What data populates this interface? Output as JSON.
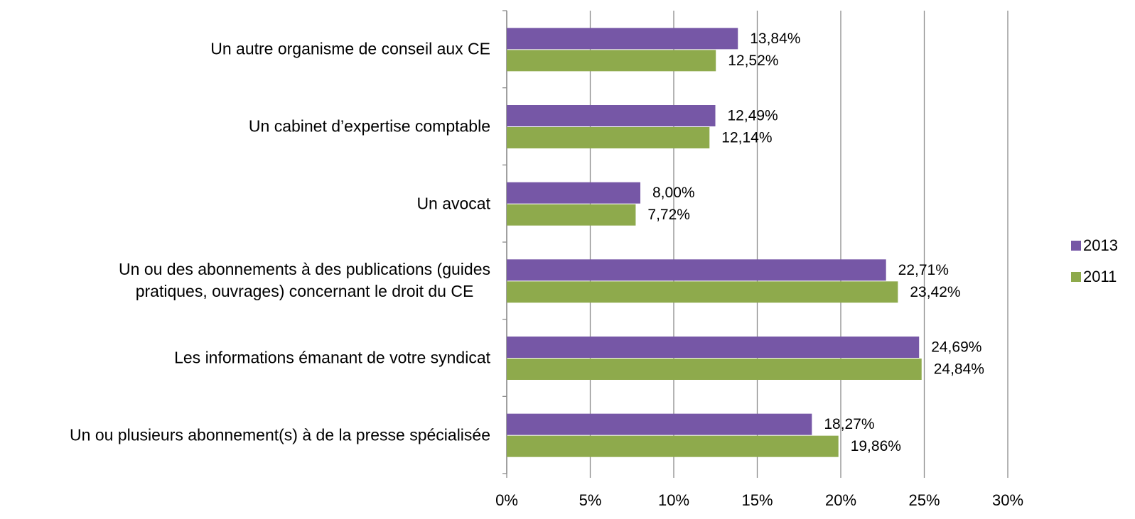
{
  "chart_data": {
    "type": "bar",
    "orientation": "horizontal",
    "categories": [
      "Un autre organisme de conseil aux CE",
      "Un cabinet d’expertise comptable",
      "Un avocat",
      "Un ou des abonnements à des publications (guides\npratiques, ouvrages) concernant le droit du CE",
      "Les informations émanant de votre syndicat",
      "Un ou plusieurs abonnement(s) à de la presse spécialisée"
    ],
    "series": [
      {
        "name": "2013",
        "color": "#7657a6",
        "values": [
          13.84,
          12.49,
          8.0,
          22.71,
          24.69,
          18.27
        ],
        "value_labels": [
          "13,84%",
          "12,49%",
          "8,00%",
          "22,71%",
          "24,69%",
          "18,27%"
        ]
      },
      {
        "name": "2011",
        "color": "#8eaa4c",
        "values": [
          12.52,
          12.14,
          7.72,
          23.42,
          24.84,
          19.86
        ],
        "value_labels": [
          "12,52%",
          "12,14%",
          "7,72%",
          "23,42%",
          "24,84%",
          "19,86%"
        ]
      }
    ],
    "xlim": [
      0,
      30
    ],
    "xticks": [
      {
        "value": 0,
        "label": "0%"
      },
      {
        "value": 5,
        "label": "5%"
      },
      {
        "value": 10,
        "label": "10%"
      },
      {
        "value": 15,
        "label": "15%"
      },
      {
        "value": 20,
        "label": "20%"
      },
      {
        "value": 25,
        "label": "25%"
      },
      {
        "value": 30,
        "label": "30%"
      }
    ],
    "grid": true,
    "legend": "right"
  }
}
